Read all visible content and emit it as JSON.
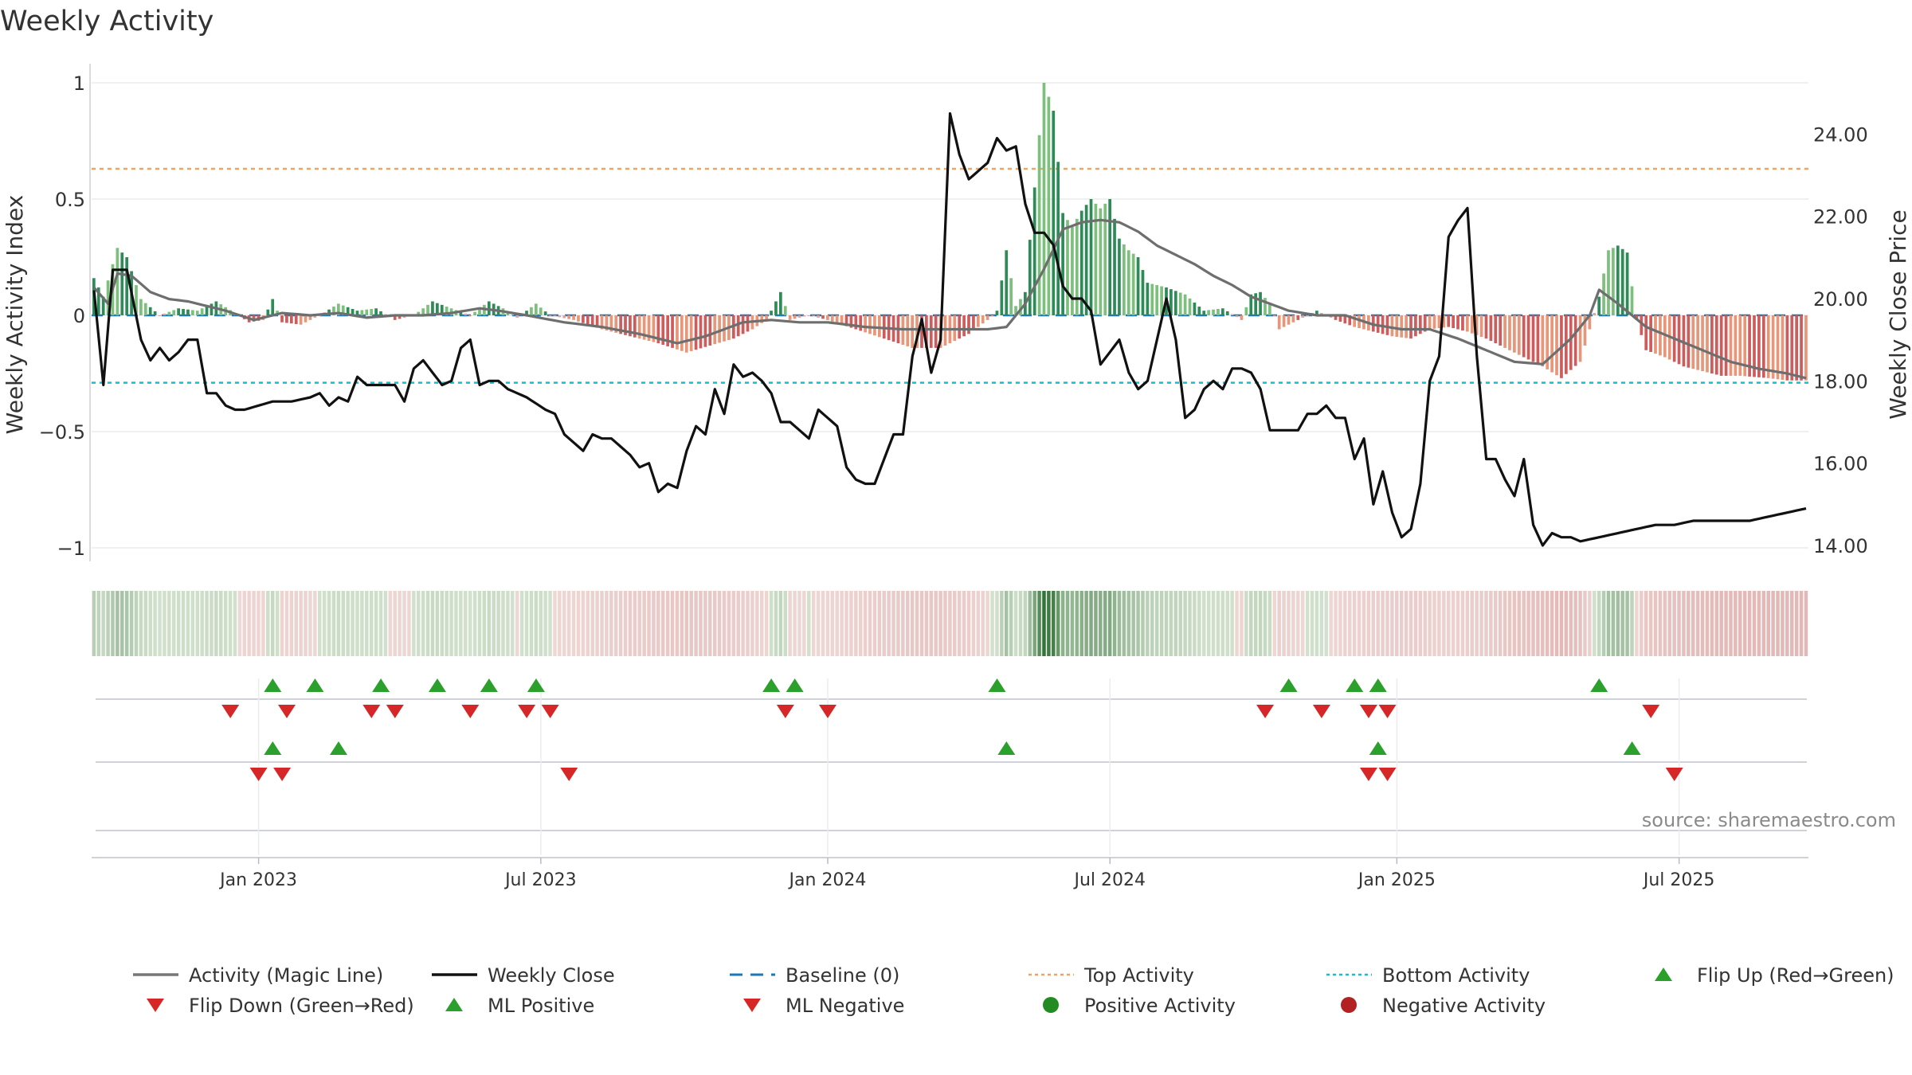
{
  "chart_data": {
    "type": "bar",
    "title": "Weekly Activity",
    "ylabel_left": "Weekly Activity Index",
    "ylabel_right": "Weekly Close Price",
    "ylim_left": [
      -1.1,
      1.1
    ],
    "ylim_right": [
      13.5,
      25.5
    ],
    "yticks_left": [
      1,
      0.5,
      0,
      -0.5,
      -1
    ],
    "yticks_left_labels": [
      "1",
      "0.5",
      "0",
      "−0.5",
      "−1"
    ],
    "yticks_right": [
      24,
      22,
      20,
      18,
      16,
      14
    ],
    "yticks_right_labels": [
      "24.00",
      "22.00",
      "20.00",
      "18.00",
      "16.00",
      "14.00"
    ],
    "x_ticks": [
      {
        "label": "Jan 2023",
        "week": 35
      },
      {
        "label": "Jul 2023",
        "week": 95
      },
      {
        "label": "Jan 2024",
        "week": 156
      },
      {
        "label": "Jul 2024",
        "week": 216
      },
      {
        "label": "Jan 2025",
        "week": 277
      },
      {
        "label": "Jul 2025",
        "week": 337
      }
    ],
    "weeks": 365,
    "top_activity": 0.63,
    "bottom_activity": -0.29,
    "source": "source: sharemaestro.com",
    "activity_keyframes": [
      [
        0,
        0.16
      ],
      [
        2,
        0.08
      ],
      [
        5,
        0.29
      ],
      [
        7,
        0.25
      ],
      [
        10,
        0.07
      ],
      [
        14,
        0.0
      ],
      [
        18,
        0.03
      ],
      [
        22,
        0.02
      ],
      [
        26,
        0.06
      ],
      [
        30,
        0.01
      ],
      [
        33,
        -0.03
      ],
      [
        36,
        -0.02
      ],
      [
        38,
        0.07
      ],
      [
        40,
        -0.03
      ],
      [
        44,
        -0.04
      ],
      [
        48,
        0.0
      ],
      [
        52,
        0.05
      ],
      [
        56,
        0.02
      ],
      [
        60,
        0.03
      ],
      [
        64,
        -0.02
      ],
      [
        68,
        0.0
      ],
      [
        72,
        0.06
      ],
      [
        76,
        0.03
      ],
      [
        80,
        0.0
      ],
      [
        84,
        0.06
      ],
      [
        87,
        0.03
      ],
      [
        90,
        -0.01
      ],
      [
        94,
        0.05
      ],
      [
        97,
        0.0
      ],
      [
        102,
        -0.02
      ],
      [
        108,
        -0.06
      ],
      [
        114,
        -0.09
      ],
      [
        120,
        -0.12
      ],
      [
        126,
        -0.16
      ],
      [
        131,
        -0.13
      ],
      [
        136,
        -0.1
      ],
      [
        140,
        -0.06
      ],
      [
        143,
        -0.02
      ],
      [
        146,
        0.1
      ],
      [
        148,
        -0.02
      ],
      [
        152,
        0.0
      ],
      [
        156,
        -0.02
      ],
      [
        162,
        -0.06
      ],
      [
        168,
        -0.1
      ],
      [
        174,
        -0.14
      ],
      [
        180,
        -0.14
      ],
      [
        186,
        -0.08
      ],
      [
        190,
        -0.02
      ],
      [
        192,
        0.02
      ],
      [
        194,
        0.28
      ],
      [
        196,
        0.04
      ],
      [
        198,
        0.1
      ],
      [
        200,
        0.55
      ],
      [
        202,
        1.0
      ],
      [
        204,
        0.88
      ],
      [
        206,
        0.44
      ],
      [
        208,
        0.38
      ],
      [
        210,
        0.45
      ],
      [
        212,
        0.5
      ],
      [
        214,
        0.46
      ],
      [
        216,
        0.5
      ],
      [
        218,
        0.33
      ],
      [
        220,
        0.28
      ],
      [
        222,
        0.25
      ],
      [
        224,
        0.14
      ],
      [
        228,
        0.12
      ],
      [
        232,
        0.09
      ],
      [
        236,
        0.02
      ],
      [
        240,
        0.03
      ],
      [
        244,
        -0.02
      ],
      [
        246,
        0.09
      ],
      [
        248,
        0.1
      ],
      [
        250,
        0.05
      ],
      [
        252,
        -0.06
      ],
      [
        256,
        -0.02
      ],
      [
        260,
        0.02
      ],
      [
        264,
        -0.02
      ],
      [
        268,
        -0.05
      ],
      [
        272,
        -0.07
      ],
      [
        276,
        -0.09
      ],
      [
        280,
        -0.1
      ],
      [
        284,
        -0.06
      ],
      [
        288,
        -0.05
      ],
      [
        292,
        -0.07
      ],
      [
        296,
        -0.1
      ],
      [
        300,
        -0.14
      ],
      [
        304,
        -0.18
      ],
      [
        308,
        -0.22
      ],
      [
        312,
        -0.27
      ],
      [
        316,
        -0.2
      ],
      [
        320,
        0.08
      ],
      [
        322,
        0.28
      ],
      [
        324,
        0.3
      ],
      [
        326,
        0.27
      ],
      [
        328,
        -0.02
      ],
      [
        330,
        -0.15
      ],
      [
        334,
        -0.18
      ],
      [
        338,
        -0.22
      ],
      [
        342,
        -0.24
      ],
      [
        346,
        -0.26
      ],
      [
        350,
        -0.26
      ],
      [
        356,
        -0.27
      ],
      [
        360,
        -0.28
      ],
      [
        364,
        -0.28
      ]
    ],
    "close_keyframes": [
      [
        0,
        20.2
      ],
      [
        2,
        17.9
      ],
      [
        4,
        20.7
      ],
      [
        7,
        20.7
      ],
      [
        10,
        19.0
      ],
      [
        12,
        18.5
      ],
      [
        14,
        18.8
      ],
      [
        16,
        18.5
      ],
      [
        18,
        18.7
      ],
      [
        20,
        19.0
      ],
      [
        22,
        19.0
      ],
      [
        24,
        17.7
      ],
      [
        26,
        17.7
      ],
      [
        28,
        17.4
      ],
      [
        30,
        17.3
      ],
      [
        32,
        17.3
      ],
      [
        35,
        17.4
      ],
      [
        38,
        17.5
      ],
      [
        42,
        17.5
      ],
      [
        46,
        17.6
      ],
      [
        48,
        17.7
      ],
      [
        50,
        17.4
      ],
      [
        52,
        17.6
      ],
      [
        54,
        17.5
      ],
      [
        56,
        18.1
      ],
      [
        58,
        17.9
      ],
      [
        62,
        17.9
      ],
      [
        64,
        17.9
      ],
      [
        66,
        17.5
      ],
      [
        68,
        18.3
      ],
      [
        70,
        18.5
      ],
      [
        72,
        18.2
      ],
      [
        74,
        17.9
      ],
      [
        76,
        18.0
      ],
      [
        78,
        18.8
      ],
      [
        80,
        19.0
      ],
      [
        82,
        17.9
      ],
      [
        84,
        18.0
      ],
      [
        86,
        18.0
      ],
      [
        88,
        17.8
      ],
      [
        90,
        17.7
      ],
      [
        92,
        17.6
      ],
      [
        96,
        17.3
      ],
      [
        98,
        17.2
      ],
      [
        100,
        16.7
      ],
      [
        102,
        16.5
      ],
      [
        104,
        16.3
      ],
      [
        106,
        16.7
      ],
      [
        108,
        16.6
      ],
      [
        110,
        16.6
      ],
      [
        112,
        16.4
      ],
      [
        114,
        16.2
      ],
      [
        116,
        15.9
      ],
      [
        118,
        16.0
      ],
      [
        120,
        15.3
      ],
      [
        122,
        15.5
      ],
      [
        124,
        15.4
      ],
      [
        126,
        16.3
      ],
      [
        128,
        16.9
      ],
      [
        130,
        16.7
      ],
      [
        132,
        17.8
      ],
      [
        134,
        17.2
      ],
      [
        136,
        18.4
      ],
      [
        138,
        18.1
      ],
      [
        140,
        18.2
      ],
      [
        142,
        18.0
      ],
      [
        144,
        17.7
      ],
      [
        146,
        17.0
      ],
      [
        148,
        17.0
      ],
      [
        150,
        16.8
      ],
      [
        152,
        16.6
      ],
      [
        154,
        17.3
      ],
      [
        156,
        17.1
      ],
      [
        158,
        16.9
      ],
      [
        160,
        15.9
      ],
      [
        162,
        15.6
      ],
      [
        164,
        15.5
      ],
      [
        166,
        15.5
      ],
      [
        168,
        16.1
      ],
      [
        170,
        16.7
      ],
      [
        172,
        16.7
      ],
      [
        174,
        18.6
      ],
      [
        176,
        19.5
      ],
      [
        178,
        18.2
      ],
      [
        180,
        19.0
      ],
      [
        182,
        24.5
      ],
      [
        184,
        23.5
      ],
      [
        186,
        22.9
      ],
      [
        188,
        23.1
      ],
      [
        190,
        23.3
      ],
      [
        192,
        23.9
      ],
      [
        194,
        23.6
      ],
      [
        196,
        23.7
      ],
      [
        198,
        22.3
      ],
      [
        200,
        21.6
      ],
      [
        202,
        21.6
      ],
      [
        204,
        21.3
      ],
      [
        206,
        20.3
      ],
      [
        208,
        20.0
      ],
      [
        210,
        20.0
      ],
      [
        212,
        19.7
      ],
      [
        214,
        18.4
      ],
      [
        216,
        18.7
      ],
      [
        218,
        19.0
      ],
      [
        220,
        18.2
      ],
      [
        222,
        17.8
      ],
      [
        224,
        18.0
      ],
      [
        226,
        19.0
      ],
      [
        228,
        20.0
      ],
      [
        230,
        19.0
      ],
      [
        232,
        17.1
      ],
      [
        234,
        17.3
      ],
      [
        236,
        17.8
      ],
      [
        238,
        18.0
      ],
      [
        240,
        17.8
      ],
      [
        242,
        18.3
      ],
      [
        244,
        18.3
      ],
      [
        246,
        18.2
      ],
      [
        248,
        17.8
      ],
      [
        250,
        16.8
      ],
      [
        252,
        16.8
      ],
      [
        254,
        16.8
      ],
      [
        256,
        16.8
      ],
      [
        258,
        17.2
      ],
      [
        260,
        17.2
      ],
      [
        262,
        17.4
      ],
      [
        264,
        17.1
      ],
      [
        266,
        17.1
      ],
      [
        268,
        16.1
      ],
      [
        270,
        16.6
      ],
      [
        272,
        15.0
      ],
      [
        274,
        15.8
      ],
      [
        276,
        14.8
      ],
      [
        278,
        14.2
      ],
      [
        280,
        14.4
      ],
      [
        282,
        15.5
      ],
      [
        284,
        18.0
      ],
      [
        286,
        18.6
      ],
      [
        288,
        21.5
      ],
      [
        290,
        21.9
      ],
      [
        292,
        22.2
      ],
      [
        294,
        18.6
      ],
      [
        296,
        16.1
      ],
      [
        298,
        16.1
      ],
      [
        300,
        15.6
      ],
      [
        302,
        15.2
      ],
      [
        304,
        16.1
      ],
      [
        306,
        14.5
      ],
      [
        308,
        14.0
      ],
      [
        310,
        14.3
      ],
      [
        312,
        14.2
      ],
      [
        314,
        14.2
      ],
      [
        316,
        14.1
      ],
      [
        320,
        14.2
      ],
      [
        324,
        14.3
      ],
      [
        328,
        14.4
      ],
      [
        332,
        14.5
      ],
      [
        336,
        14.5
      ],
      [
        340,
        14.6
      ],
      [
        344,
        14.6
      ],
      [
        348,
        14.6
      ],
      [
        352,
        14.6
      ],
      [
        356,
        14.7
      ],
      [
        360,
        14.8
      ],
      [
        364,
        14.9
      ]
    ],
    "magic_keyframes": [
      [
        0,
        0.12
      ],
      [
        3,
        0.05
      ],
      [
        5,
        0.18
      ],
      [
        8,
        0.17
      ],
      [
        12,
        0.1
      ],
      [
        16,
        0.07
      ],
      [
        20,
        0.06
      ],
      [
        24,
        0.04
      ],
      [
        28,
        0.02
      ],
      [
        34,
        -0.02
      ],
      [
        40,
        0.01
      ],
      [
        46,
        0.0
      ],
      [
        52,
        0.01
      ],
      [
        58,
        -0.01
      ],
      [
        64,
        0.0
      ],
      [
        70,
        0.0
      ],
      [
        76,
        0.01
      ],
      [
        82,
        0.03
      ],
      [
        86,
        0.02
      ],
      [
        92,
        0.0
      ],
      [
        100,
        -0.03
      ],
      [
        108,
        -0.05
      ],
      [
        116,
        -0.08
      ],
      [
        124,
        -0.12
      ],
      [
        130,
        -0.09
      ],
      [
        138,
        -0.03
      ],
      [
        144,
        -0.02
      ],
      [
        150,
        -0.03
      ],
      [
        156,
        -0.03
      ],
      [
        164,
        -0.05
      ],
      [
        172,
        -0.06
      ],
      [
        180,
        -0.06
      ],
      [
        186,
        -0.06
      ],
      [
        190,
        -0.06
      ],
      [
        194,
        -0.05
      ],
      [
        198,
        0.05
      ],
      [
        202,
        0.2
      ],
      [
        206,
        0.37
      ],
      [
        210,
        0.4
      ],
      [
        214,
        0.41
      ],
      [
        218,
        0.4
      ],
      [
        222,
        0.36
      ],
      [
        226,
        0.3
      ],
      [
        230,
        0.26
      ],
      [
        234,
        0.22
      ],
      [
        238,
        0.17
      ],
      [
        242,
        0.13
      ],
      [
        246,
        0.08
      ],
      [
        250,
        0.05
      ],
      [
        254,
        0.02
      ],
      [
        260,
        0.0
      ],
      [
        266,
        0.0
      ],
      [
        272,
        -0.04
      ],
      [
        278,
        -0.06
      ],
      [
        284,
        -0.06
      ],
      [
        290,
        -0.1
      ],
      [
        296,
        -0.15
      ],
      [
        302,
        -0.2
      ],
      [
        308,
        -0.21
      ],
      [
        314,
        -0.1
      ],
      [
        318,
        0.0
      ],
      [
        320,
        0.11
      ],
      [
        324,
        0.05
      ],
      [
        330,
        -0.05
      ],
      [
        336,
        -0.1
      ],
      [
        342,
        -0.15
      ],
      [
        348,
        -0.2
      ],
      [
        354,
        -0.23
      ],
      [
        360,
        -0.25
      ],
      [
        364,
        -0.27
      ]
    ],
    "flip_up_row1": [
      38,
      47,
      61,
      73,
      84,
      94,
      144,
      149,
      192,
      254,
      268,
      273,
      320
    ],
    "flip_down_row1": [
      29,
      41,
      59,
      64,
      80,
      92,
      97,
      147,
      156,
      249,
      261,
      271,
      275,
      331
    ],
    "ml_positive": [
      38,
      52,
      194,
      273,
      327
    ],
    "ml_negative": [
      35,
      40,
      101,
      271,
      275,
      336
    ]
  },
  "legend": [
    {
      "label": "Activity (Magic Line)",
      "symbol": "line",
      "color": "#777777"
    },
    {
      "label": "Weekly Close",
      "symbol": "line",
      "color": "#111111"
    },
    {
      "label": "Baseline (0)",
      "symbol": "dash",
      "color": "#1f77b4"
    },
    {
      "label": "Top Activity",
      "symbol": "dot",
      "color": "#f4a261"
    },
    {
      "label": "Bottom Activity",
      "symbol": "dot",
      "color": "#17becf"
    },
    {
      "label": "Flip Up (Red→Green)",
      "symbol": "tri-up",
      "color": "#2ca02c"
    },
    {
      "label": "Flip Down (Green→Red)",
      "symbol": "tri-down",
      "color": "#d62728"
    },
    {
      "label": "ML Positive",
      "symbol": "tri-up",
      "color": "#2ca02c"
    },
    {
      "label": "ML Negative",
      "symbol": "tri-down",
      "color": "#d62728"
    },
    {
      "label": "Positive Activity",
      "symbol": "circle",
      "color": "#228b22"
    },
    {
      "label": "Negative Activity",
      "symbol": "circle",
      "color": "#b22222"
    }
  ]
}
